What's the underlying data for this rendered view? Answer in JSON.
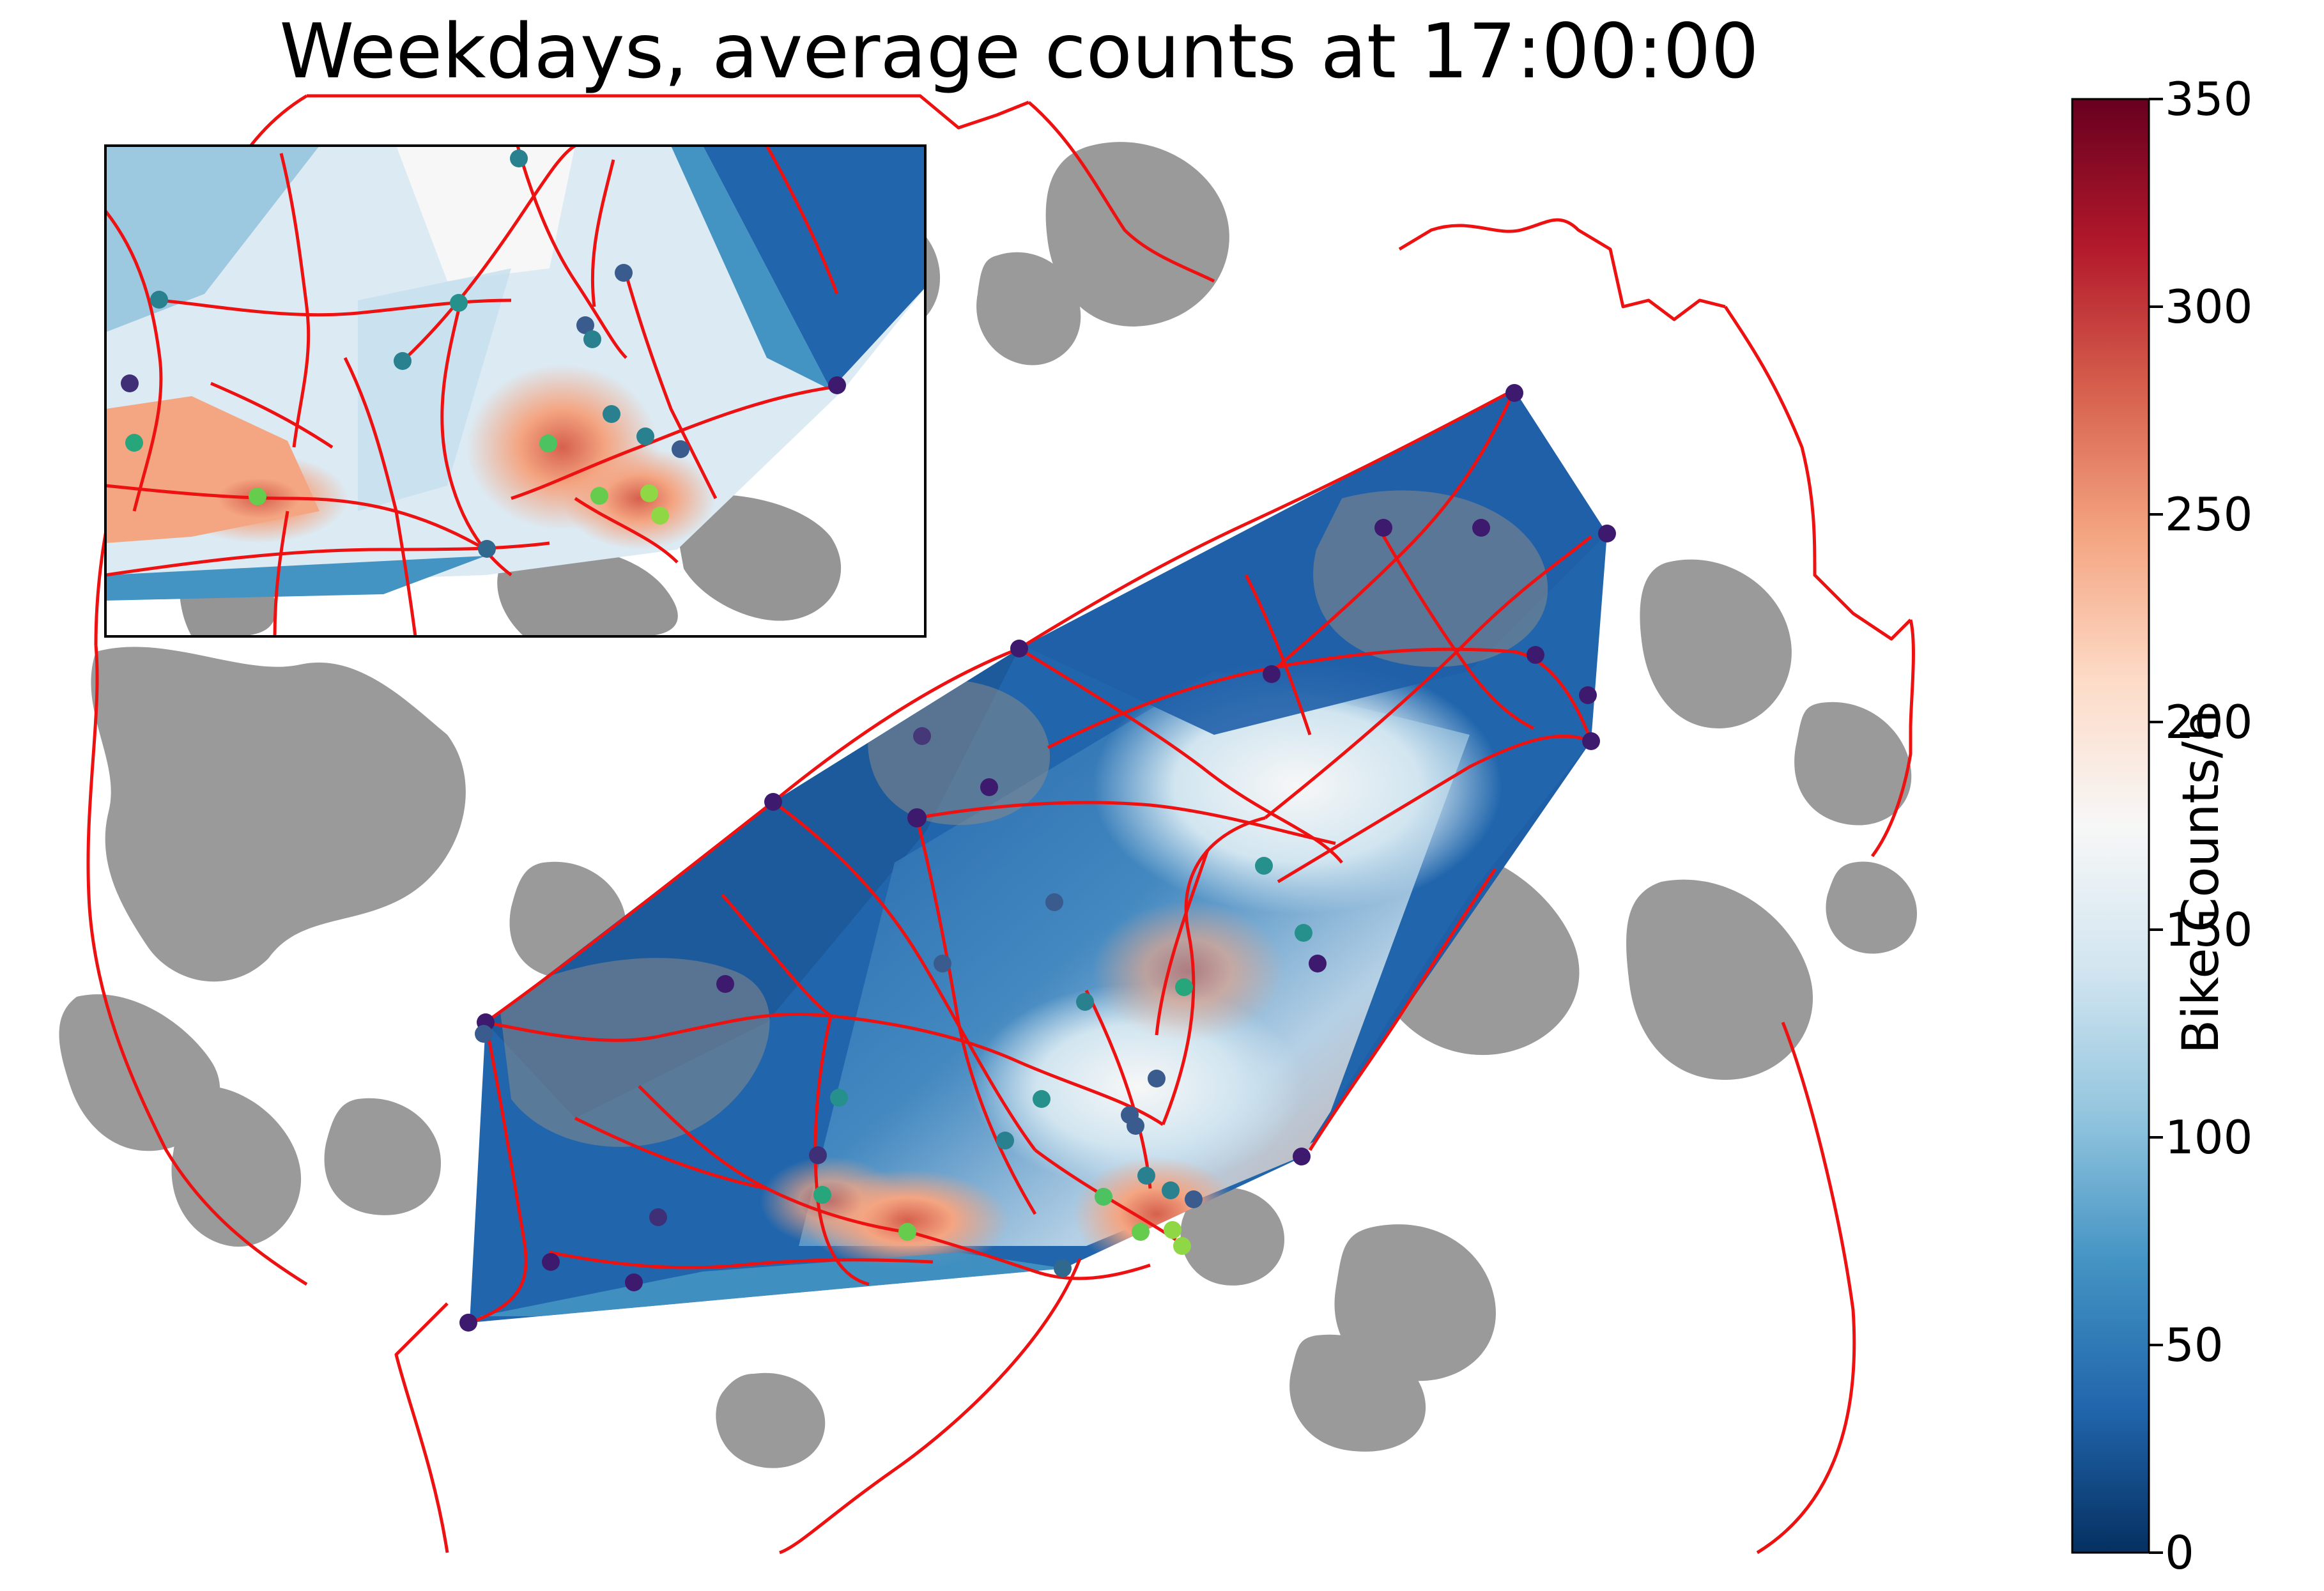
{
  "title": "Weekdays, average counts at 17:00:00",
  "colorbar": {
    "label": "Bike Counts/h",
    "min": 0,
    "max": 350,
    "ticks": [
      "0",
      "50",
      "100",
      "150",
      "200",
      "250",
      "300",
      "350"
    ],
    "colormap": "RdBu_r",
    "stops": [
      "#053061",
      "#2166ac",
      "#4393c3",
      "#92c5de",
      "#d1e5f0",
      "#f7f7f7",
      "#fddbc7",
      "#f4a582",
      "#d6604d",
      "#b2182b",
      "#67001f"
    ]
  },
  "colors": {
    "background_buildings": "#959595",
    "routes": "#ee1111",
    "inset_frame": "#000000"
  },
  "inset": {
    "present": true,
    "shows": "zoomed city-center detail"
  },
  "stations_legend_colormap": "viridis"
}
